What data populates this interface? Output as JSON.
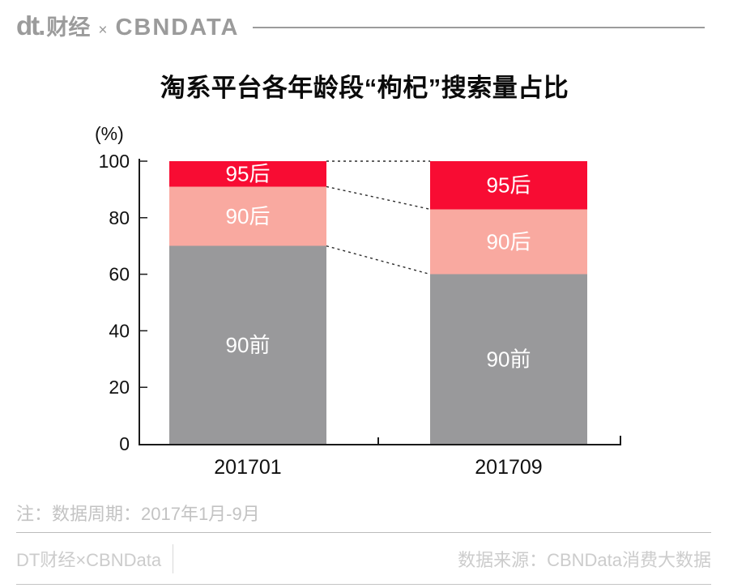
{
  "header": {
    "logo_dt": "dt.",
    "logo_caijing": "财经",
    "logo_times": "×",
    "logo_cbndata": "CBNDATA"
  },
  "title": "淘系平台各年龄段“枸杞”搜索量占比",
  "chart_data": {
    "type": "bar",
    "stacked": true,
    "title": "淘系平台各年龄段“枸杞”搜索量占比",
    "unit_label": "(%)",
    "xlabel": "",
    "ylabel": "(%)",
    "categories": [
      "201701",
      "201709"
    ],
    "series": [
      {
        "name": "90前",
        "values": [
          70,
          60
        ],
        "color": "#99999b",
        "label_color": "#ffffff"
      },
      {
        "name": "90后",
        "values": [
          21,
          23
        ],
        "color": "#f9a9a0",
        "label_color": "#ffffff"
      },
      {
        "name": "95后",
        "values": [
          9,
          17
        ],
        "color": "#f80c33",
        "label_color": "#ffffff"
      }
    ],
    "y_ticks": [
      0,
      20,
      40,
      60,
      80,
      100
    ],
    "ylim": [
      0,
      100
    ],
    "grid": false,
    "legend": "labels-inside-bars",
    "connector_lines": "dashed",
    "axis_color": "#1a1a1a",
    "dash_color": "#2b2b2b"
  },
  "note": "注：数据周期：2017年1月-9月",
  "footer": {
    "left": "DT财经×CBNData",
    "right": "数据来源：CBNData消费大数据"
  }
}
